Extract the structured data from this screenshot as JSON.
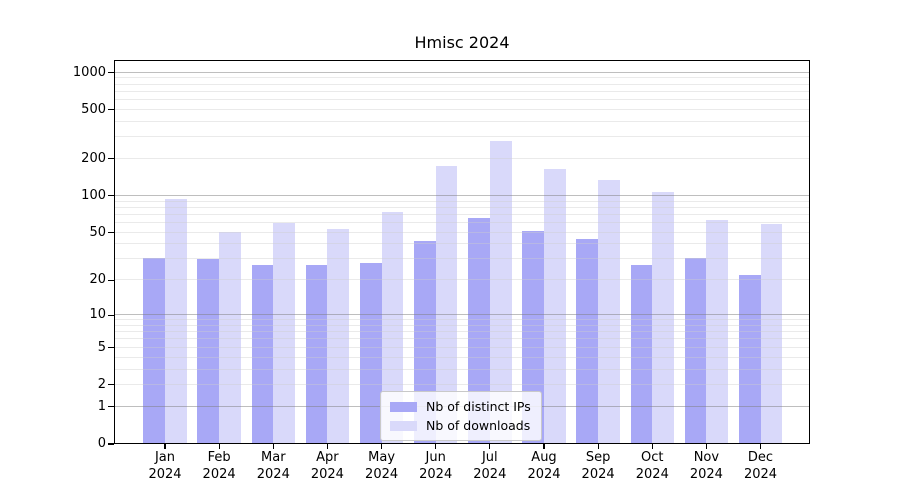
{
  "title": "Hmisc 2024",
  "legend": {
    "items": [
      {
        "label": "Nb of distinct IPs",
        "color": "#a8a8f6"
      },
      {
        "label": "Nb of downloads",
        "color": "#d9d9fa"
      }
    ]
  },
  "chart_data": {
    "type": "bar",
    "title": "Hmisc 2024",
    "yscale": "log1p",
    "ylim": [
      0,
      1265
    ],
    "yticks": [
      0,
      1,
      2,
      5,
      10,
      20,
      50,
      100,
      200,
      500,
      1000
    ],
    "grid": {
      "major": [
        1,
        10,
        100,
        1000
      ],
      "minor_per_decade": [
        2,
        3,
        4,
        5,
        6,
        7,
        8,
        9
      ],
      "visible": true
    },
    "x_months": [
      "Jan",
      "Feb",
      "Mar",
      "Apr",
      "May",
      "Jun",
      "Jul",
      "Aug",
      "Sep",
      "Oct",
      "Nov",
      "Dec"
    ],
    "x_year": "2024",
    "categories": [
      "Jan 2024",
      "Feb 2024",
      "Mar 2024",
      "Apr 2024",
      "May 2024",
      "Jun 2024",
      "Jul 2024",
      "Aug 2024",
      "Sep 2024",
      "Oct 2024",
      "Nov 2024",
      "Dec 2024"
    ],
    "series": [
      {
        "name": "Nb of distinct IPs",
        "color": "#a8a8f6",
        "values": [
          31,
          30,
          27,
          27,
          28,
          43,
          66,
          52,
          44,
          27,
          31,
          22
        ]
      },
      {
        "name": "Nb of downloads",
        "color": "#d9d9fa",
        "values": [
          94,
          51,
          60,
          54,
          74,
          176,
          280,
          166,
          134,
          107,
          63,
          59
        ]
      }
    ],
    "legend_position": "bottom-center",
    "axis_color": "#000000",
    "major_grid_color": "#aaaaaa",
    "minor_grid_color": "#e8e8e8"
  }
}
